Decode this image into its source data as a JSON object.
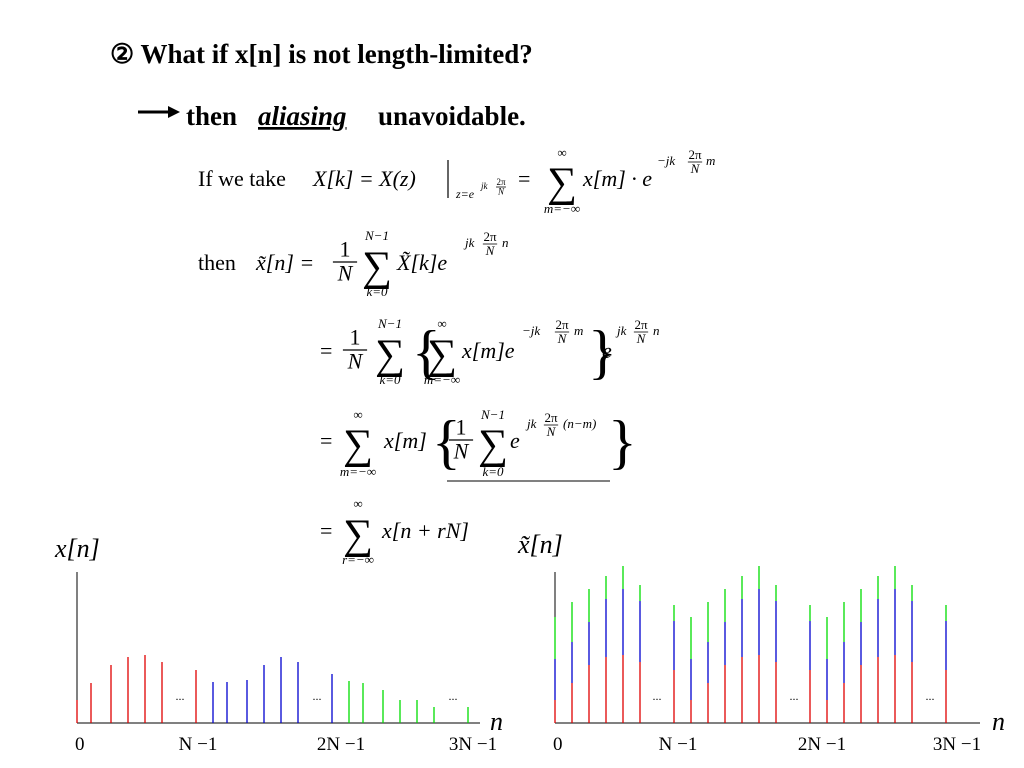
{
  "title": "② What if x[n] is not length-limited?",
  "subtitle": {
    "lead": "then",
    "emphasis": "aliasing",
    "tail": "unavoidable."
  },
  "eq1": {
    "lead": "If  we take",
    "lhs": "X[k] = X(z)",
    "sub": "z=e",
    "sub_exp": "jk",
    "two_pi": "2π",
    "n": "N",
    "eq": "=",
    "sum": "∑",
    "upper": "∞",
    "lower": "m=−∞",
    "body": "x[m] · e",
    "exp": "−jk",
    "exp_tail": "m"
  },
  "eq2": {
    "lead": "then",
    "lhs": "x̃[n] =",
    "one": "1",
    "n": "N",
    "sum": "∑",
    "upper": "N−1",
    "lower": "k=0",
    "body": "X̃[k]e",
    "exp": "jk",
    "two_pi": "2π",
    "exp_tail": "n"
  },
  "eq3": {
    "eq": "=",
    "one": "1",
    "n": "N",
    "sum": "∑",
    "upper1": "N−1",
    "lower1": "k=0",
    "open": "{",
    "upper2": "∞",
    "lower2": "m=−∞",
    "body": "x[m]e",
    "exp1": "−jk",
    "two_pi": "2π",
    "exp1_tail": "m",
    "close": "}",
    "tail": "e",
    "exp2": "jk",
    "exp2_tail": "n"
  },
  "eq4": {
    "eq": "=",
    "sum": "∑",
    "upper1": "∞",
    "lower1": "m=−∞",
    "body": "x[m]",
    "open": "{",
    "one": "1",
    "n": "N",
    "upper2": "N−1",
    "lower2": "k=0",
    "tail": "e",
    "exp": "jk",
    "two_pi": "2π",
    "exp_tail": "(n−m)",
    "close": "}"
  },
  "eq5": {
    "eq": "=",
    "sum": "∑",
    "upper": "∞",
    "lower": "r=−∞",
    "body": "x[n + rN]"
  },
  "plots": [
    {
      "ylabel": "x[n]",
      "xlabel": "n",
      "ticks": [
        "0",
        "N −1",
        "2N −1",
        "3N −1"
      ],
      "ellipsis": "..."
    },
    {
      "ylabel": "x̃[n]",
      "xlabel": "n",
      "ticks": [
        "0",
        "N −1",
        "2N −1",
        "3N −1"
      ],
      "ellipsis": "..."
    }
  ]
}
